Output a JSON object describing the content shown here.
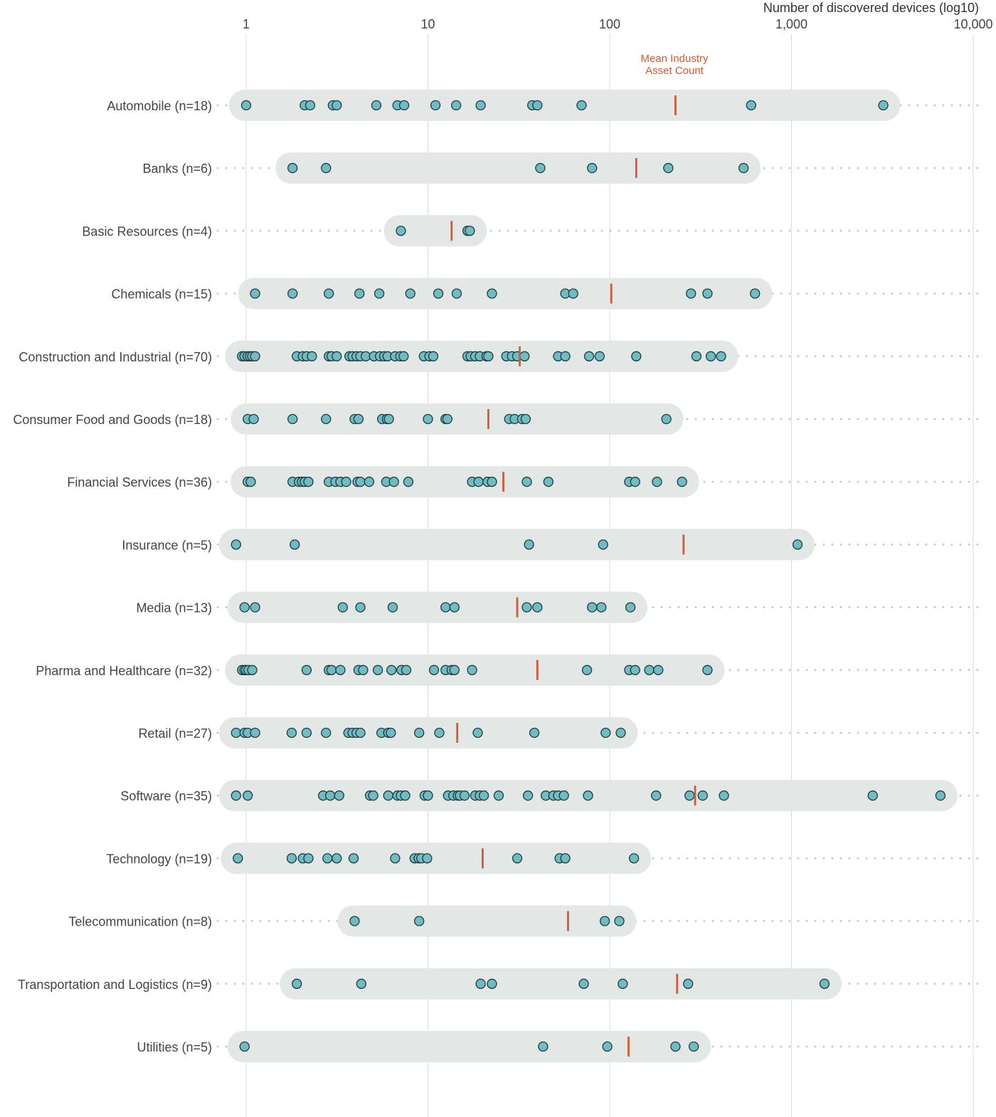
{
  "chart_data": {
    "type": "scatter",
    "xlabel": "Number of discovered devices (log10)",
    "x_scale": "log10",
    "xlim": [
      1,
      10000
    ],
    "x_ticks": [
      {
        "value": 1,
        "label": "1"
      },
      {
        "value": 10,
        "label": "10"
      },
      {
        "value": 100,
        "label": "100"
      },
      {
        "value": 1000,
        "label": "1,000"
      },
      {
        "value": 10000,
        "label": "10,000"
      }
    ],
    "grid": "vertical",
    "annotation": {
      "line1": "Mean Industry",
      "line2": "Asset Count"
    },
    "colors": {
      "point_fill": "#6fbcc2",
      "point_stroke": "#1f3a40",
      "mean": "#d45a35",
      "band": "#e3e7e6",
      "grid": "#d9d9d9",
      "dots": "#c8c8c8"
    },
    "series": [
      {
        "name": "Automobile (n=18)",
        "mean": 230,
        "values": [
          1,
          2.1,
          2.25,
          3,
          3.15,
          5.2,
          6.8,
          7.4,
          11,
          14.3,
          19.5,
          37.5,
          40,
          70,
          600,
          3200
        ]
      },
      {
        "name": "Banks (n=6)",
        "mean": 140,
        "values": [
          1.8,
          2.75,
          41.5,
          80,
          210,
          545
        ]
      },
      {
        "name": "Basic Resources (n=4)",
        "mean": 13.5,
        "values": [
          7.1,
          16.5,
          17
        ]
      },
      {
        "name": "Chemicals (n=15)",
        "mean": 102,
        "values": [
          1.12,
          1.8,
          2.85,
          4.2,
          5.4,
          8,
          11.4,
          14.4,
          22.5,
          57,
          63,
          280,
          345,
          630
        ]
      },
      {
        "name": "Construction and Industrial (n=70)",
        "mean": 32,
        "values": [
          0.95,
          0.98,
          1.02,
          1.05,
          1.08,
          1.12,
          1.9,
          2.05,
          2.15,
          2.3,
          2.85,
          2.95,
          3.15,
          3.7,
          3.85,
          4.05,
          4.25,
          4.55,
          5.05,
          5.45,
          5.75,
          6,
          6.6,
          7.05,
          7.35,
          9.5,
          10.2,
          10.7,
          16.5,
          17.2,
          18.2,
          19.3,
          21,
          21.5,
          27,
          29,
          31,
          34,
          52,
          57,
          77,
          88,
          140,
          300,
          360,
          410
        ]
      },
      {
        "name": "Consumer Food and Goods (n=18)",
        "mean": 21.5,
        "values": [
          1.02,
          1.1,
          1.8,
          2.75,
          3.95,
          4.15,
          5.6,
          5.95,
          6.1,
          10,
          12.5,
          12.8,
          28,
          30,
          33,
          34.5,
          205
        ]
      },
      {
        "name": "Financial Services (n=36)",
        "mean": 26,
        "values": [
          1.02,
          1.06,
          1.8,
          1.95,
          2.03,
          2.1,
          2.2,
          2.85,
          3.1,
          3.3,
          3.55,
          4.1,
          4.25,
          4.75,
          5.9,
          6.5,
          7.8,
          17.5,
          19,
          21.3,
          22.5,
          35,
          46,
          128,
          138,
          182,
          250
        ]
      },
      {
        "name": "Insurance (n=5)",
        "mean": 255,
        "values": [
          0.88,
          1.85,
          36,
          92,
          1080
        ]
      },
      {
        "name": "Media (n=13)",
        "mean": 31,
        "values": [
          0.98,
          1.12,
          3.4,
          4.25,
          6.4,
          12.5,
          14,
          35,
          40,
          80,
          90,
          130
        ]
      },
      {
        "name": "Pharma and Healthcare (n=32)",
        "mean": 40,
        "values": [
          0.95,
          0.98,
          1.0,
          1.03,
          1.08,
          2.15,
          2.85,
          2.95,
          3.3,
          4.15,
          4.4,
          5.3,
          6.3,
          7.15,
          7.6,
          10.8,
          12.5,
          13.5,
          14,
          17.5,
          75,
          128,
          138,
          165,
          185,
          345
        ]
      },
      {
        "name": "Retail (n=27)",
        "mean": 14.5,
        "values": [
          0.88,
          0.98,
          1.02,
          1.12,
          1.78,
          2.15,
          2.75,
          3.65,
          3.85,
          4.05,
          4.25,
          5.55,
          6.05,
          6.25,
          8.95,
          11.55,
          18.8,
          38.5,
          95,
          115
        ]
      },
      {
        "name": "Software (n=35)",
        "mean": 295,
        "values": [
          0.88,
          1.02,
          2.65,
          2.9,
          3.25,
          4.8,
          5,
          6.05,
          6.8,
          7.1,
          7.5,
          9.6,
          10,
          12.9,
          13.8,
          14.6,
          15,
          15.9,
          18.2,
          19.3,
          20.3,
          24.5,
          35.5,
          44.5,
          49,
          52,
          56,
          76,
          180,
          275,
          325,
          425,
          2800,
          6600
        ]
      },
      {
        "name": "Technology (n=19)",
        "mean": 20,
        "values": [
          0.9,
          1.78,
          2.05,
          2.2,
          2.8,
          3.15,
          3.9,
          6.6,
          8.45,
          8.9,
          9.2,
          9.9,
          31,
          53,
          57,
          136
        ]
      },
      {
        "name": "Telecommunication (n=8)",
        "mean": 59,
        "values": [
          3.95,
          8.95,
          94,
          113
        ]
      },
      {
        "name": "Transportation and Logistics (n=9)",
        "mean": 235,
        "values": [
          1.9,
          4.3,
          19.5,
          22.5,
          72,
          118,
          270,
          1520
        ]
      },
      {
        "name": "Utilities (n=5)",
        "mean": 127,
        "values": [
          0.98,
          43,
          97,
          230,
          290
        ]
      }
    ]
  }
}
